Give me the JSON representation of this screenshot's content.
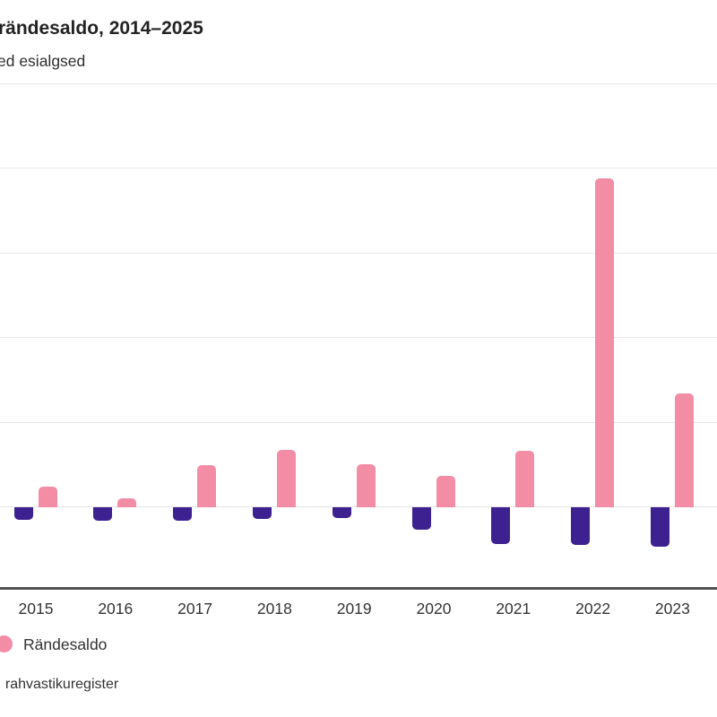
{
  "header": {
    "title": "rändesaldo, 2014–2025",
    "subtitle": "ed esialgsed"
  },
  "legend": {
    "items": [
      {
        "label": "Rändesaldo",
        "color": "#f38ca5"
      }
    ]
  },
  "source_note": ", rahvastikuregister",
  "chart_data": {
    "type": "bar",
    "title": "rändesaldo, 2014–2025",
    "subtitle": "ed esialgsed",
    "categories": [
      "2015",
      "2016",
      "2017",
      "2018",
      "2019",
      "2020",
      "2021",
      "2022",
      "2023"
    ],
    "series": [
      {
        "name": "",
        "legend_label_visible": false,
        "color": "#3d2190",
        "values": [
          -1500,
          -1600,
          -1600,
          -1400,
          -1300,
          -2600,
          -4300,
          -4500,
          -4700
        ]
      },
      {
        "name": "Rändesaldo",
        "legend_label_visible": true,
        "color": "#f38ca5",
        "values": [
          2400,
          1100,
          5000,
          6800,
          5100,
          3700,
          6700,
          38900,
          13500
        ]
      }
    ],
    "xlabel": "",
    "ylabel": "",
    "ylim": [
      -10000,
      50000
    ],
    "y_gridline_step": 10000,
    "y_tick_labels_visible": false,
    "grid": true,
    "legend_position": "bottom-left",
    "notes": "Cropped screenshot: left edge cuts off start of title, subtitle, legend marker, source text and the 2014 bars; right edge cuts off 2024-2025; y-axis tick labels not visible. Values estimated from unlabeled gridlines assuming 10000 per division."
  }
}
